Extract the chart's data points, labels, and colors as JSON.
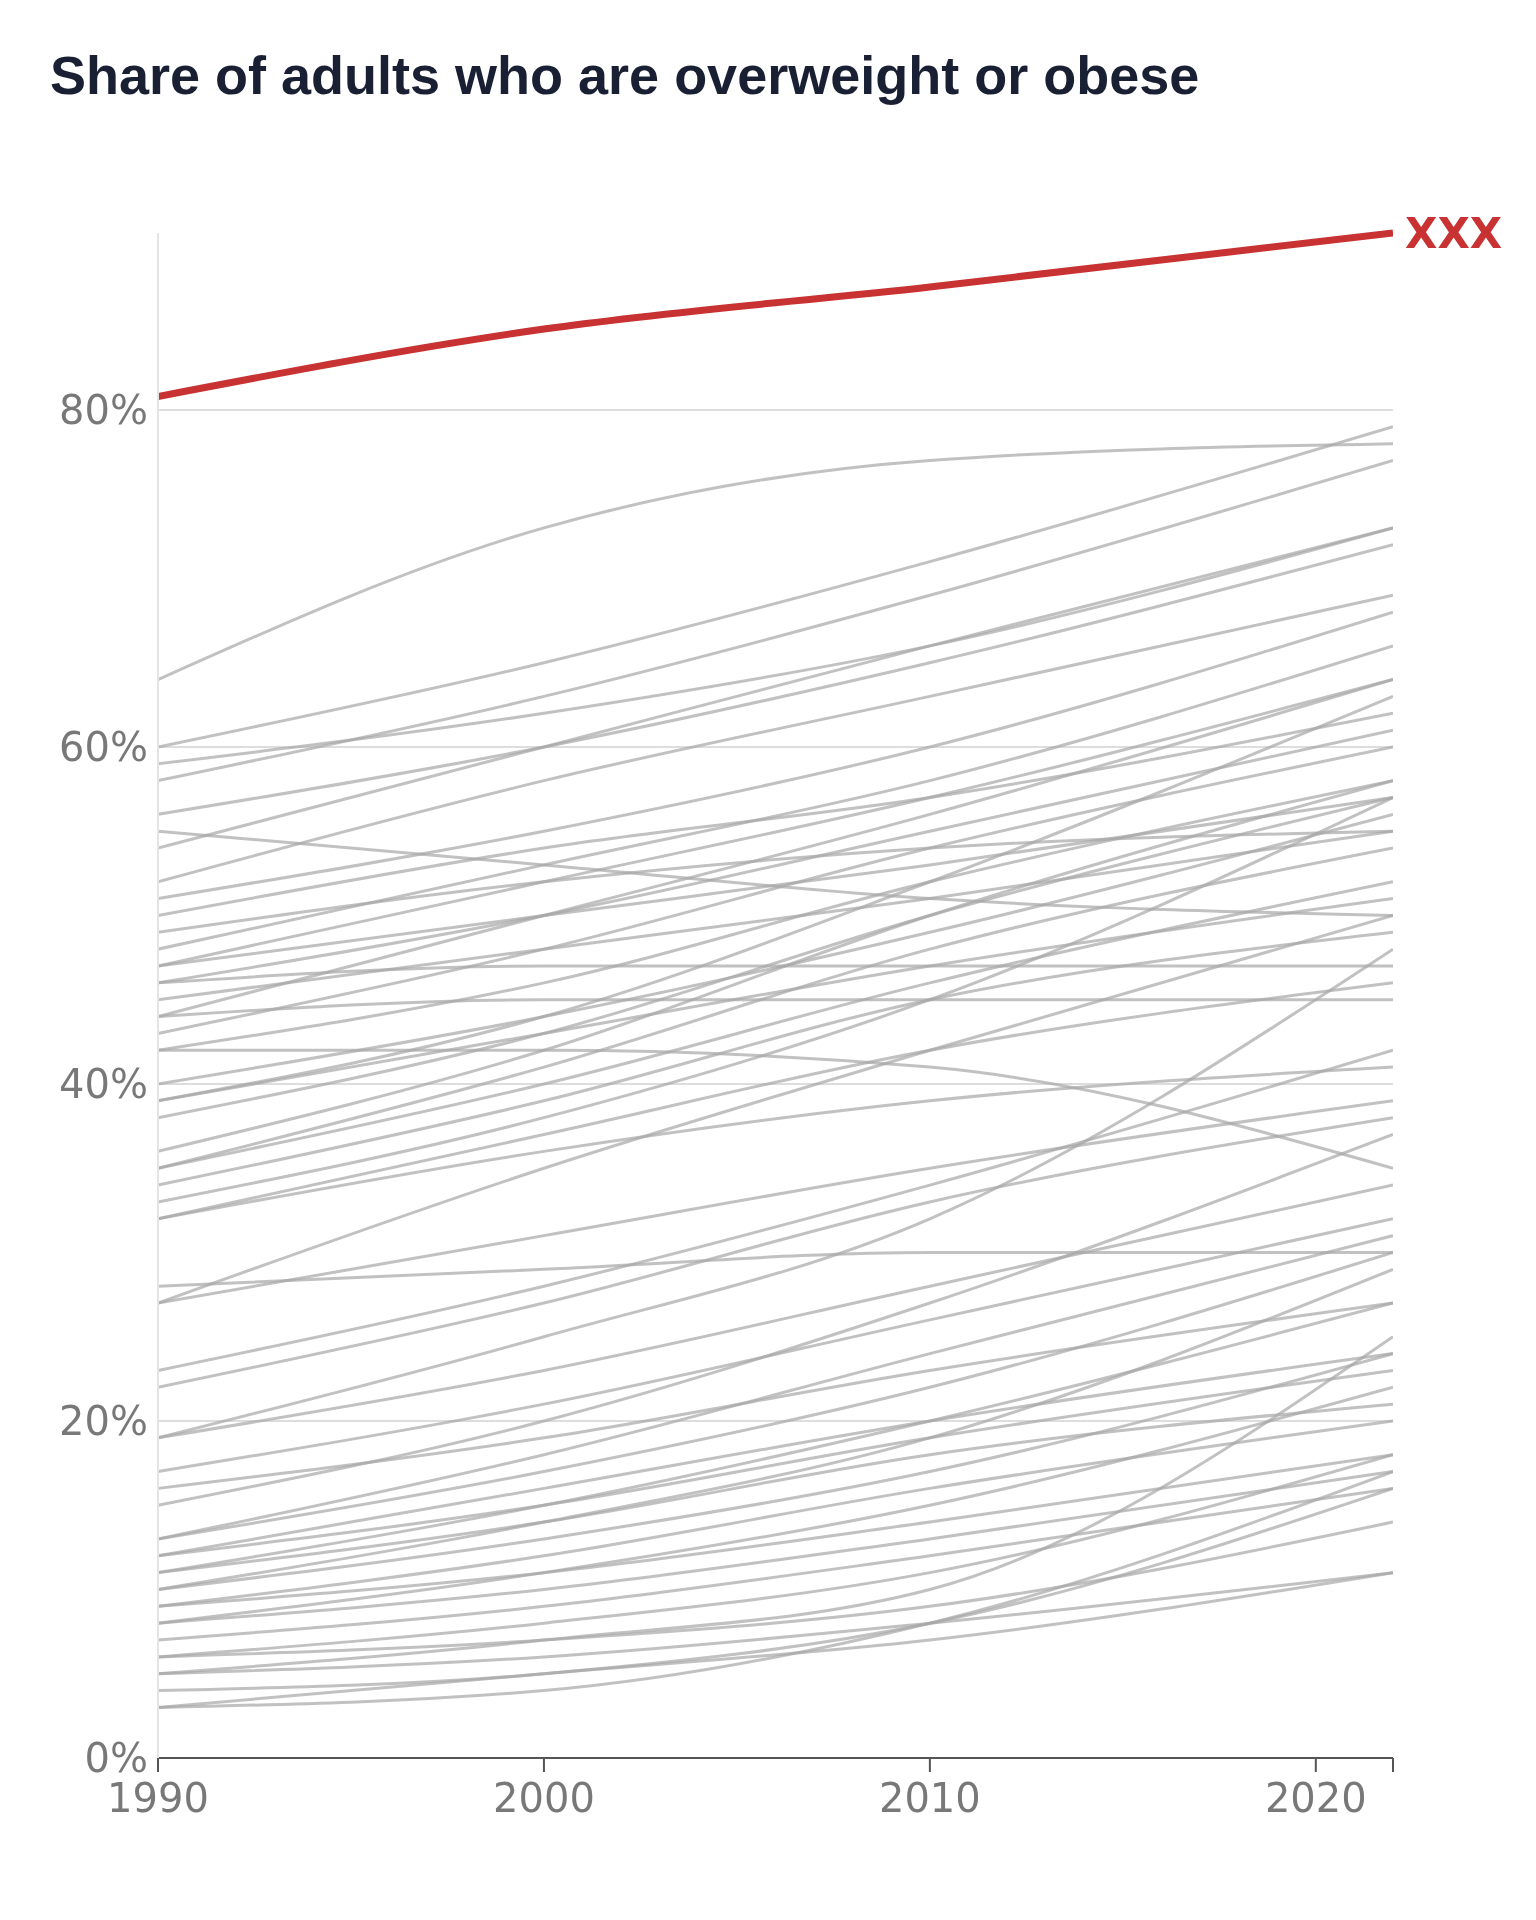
{
  "chart_data": {
    "type": "line",
    "title": "Share of adults who are overweight or obese",
    "x": [
      1990,
      2000,
      2010,
      2022
    ],
    "xlim": [
      1990,
      2022
    ],
    "ylim": [
      0,
      90.5
    ],
    "xticks": [
      1990,
      2000,
      2010,
      2020,
      {
        "value": 2022,
        "label": null
      }
    ],
    "yticks": [
      {
        "value": 0,
        "label": "0%"
      },
      {
        "value": 20,
        "label": "20%"
      },
      {
        "value": 40,
        "label": "40%"
      },
      {
        "value": 60,
        "label": "60%"
      },
      {
        "value": 80,
        "label": "80%"
      }
    ],
    "grid": "y",
    "marker": "none",
    "line_style": "solid",
    "series": [
      {
        "color": "#a6a6a6",
        "values": [
          64,
          73,
          77,
          78
        ]
      },
      {
        "color": "#a6a6a6",
        "values": [
          60,
          65,
          71,
          79
        ]
      },
      {
        "color": "#a6a6a6",
        "values": [
          59,
          62,
          66,
          73
        ]
      },
      {
        "color": "#a6a6a6",
        "values": [
          58,
          63,
          69,
          77
        ]
      },
      {
        "color": "#a6a6a6",
        "values": [
          56,
          60,
          65,
          72
        ]
      },
      {
        "color": "#a6a6a6",
        "values": [
          55,
          53,
          51,
          50
        ]
      },
      {
        "color": "#a6a6a6",
        "values": [
          54,
          60,
          66,
          73
        ]
      },
      {
        "color": "#a6a6a6",
        "values": [
          52,
          58,
          63,
          69
        ]
      },
      {
        "color": "#a6a6a6",
        "values": [
          51,
          55,
          60,
          68
        ]
      },
      {
        "color": "#a6a6a6",
        "values": [
          50,
          54,
          57,
          62
        ]
      },
      {
        "color": "#a6a6a6",
        "values": [
          49,
          52,
          54,
          55
        ]
      },
      {
        "color": "#a6a6a6",
        "values": [
          48,
          53,
          58,
          66
        ]
      },
      {
        "color": "#a6a6a6",
        "values": [
          47,
          50,
          53,
          57
        ]
      },
      {
        "color": "#a6a6a6",
        "values": [
          46,
          50,
          55,
          61
        ]
      },
      {
        "color": "#a6a6a6",
        "values": [
          46,
          47,
          47,
          47
        ]
      },
      {
        "color": "#a6a6a6",
        "values": [
          45,
          48,
          51,
          55
        ]
      },
      {
        "color": "#a6a6a6",
        "values": [
          44,
          45,
          45,
          45
        ]
      },
      {
        "color": "#a6a6a6",
        "values": [
          43,
          48,
          54,
          60
        ]
      },
      {
        "color": "#a6a6a6",
        "values": [
          42,
          46,
          52,
          58
        ]
      },
      {
        "color": "#a6a6a6",
        "values": [
          42,
          42,
          41,
          35
        ]
      },
      {
        "color": "#a6a6a6",
        "values": [
          40,
          44,
          49,
          56
        ]
      },
      {
        "color": "#a6a6a6",
        "values": [
          39,
          43,
          47,
          51
        ]
      },
      {
        "color": "#a6a6a6",
        "values": [
          39,
          44,
          52,
          63
        ]
      },
      {
        "color": "#a6a6a6",
        "values": [
          38,
          43,
          50,
          57
        ]
      },
      {
        "color": "#a6a6a6",
        "values": [
          35,
          41,
          48,
          54
        ]
      },
      {
        "color": "#a6a6a6",
        "values": [
          35,
          40,
          46,
          52
        ]
      },
      {
        "color": "#a6a6a6",
        "values": [
          34,
          39,
          45,
          49
        ]
      },
      {
        "color": "#a6a6a6",
        "values": [
          33,
          38,
          45,
          57
        ]
      },
      {
        "color": "#a6a6a6",
        "values": [
          32,
          37,
          42,
          46
        ]
      },
      {
        "color": "#a6a6a6",
        "values": [
          32,
          36,
          39,
          41
        ]
      },
      {
        "color": "#a6a6a6",
        "values": [
          28,
          29,
          30,
          30
        ]
      },
      {
        "color": "#a6a6a6",
        "values": [
          27,
          31,
          35,
          39
        ]
      },
      {
        "color": "#a6a6a6",
        "values": [
          23,
          28,
          34,
          42
        ]
      },
      {
        "color": "#a6a6a6",
        "values": [
          22,
          27,
          33,
          38
        ]
      },
      {
        "color": "#a6a6a6",
        "values": [
          19,
          23,
          28,
          34
        ]
      },
      {
        "color": "#a6a6a6",
        "values": [
          19,
          25,
          32,
          48
        ]
      },
      {
        "color": "#a6a6a6",
        "values": [
          17,
          21,
          26,
          32
        ]
      },
      {
        "color": "#a6a6a6",
        "values": [
          16,
          19,
          23,
          27
        ]
      },
      {
        "color": "#a6a6a6",
        "values": [
          15,
          20,
          27,
          37
        ]
      },
      {
        "color": "#a6a6a6",
        "values": [
          13,
          17,
          22,
          30
        ]
      },
      {
        "color": "#a6a6a6",
        "values": [
          13,
          18,
          24,
          31
        ]
      },
      {
        "color": "#a6a6a6",
        "values": [
          12,
          16,
          20,
          24
        ]
      },
      {
        "color": "#a6a6a6",
        "values": [
          12,
          15,
          19,
          23
        ]
      },
      {
        "color": "#a6a6a6",
        "values": [
          11,
          15,
          20,
          27
        ]
      },
      {
        "color": "#a6a6a6",
        "values": [
          11,
          14,
          18,
          21
        ]
      },
      {
        "color": "#a6a6a6",
        "values": [
          10,
          13,
          17,
          24
        ]
      },
      {
        "color": "#a6a6a6",
        "values": [
          10,
          14,
          19,
          29
        ]
      },
      {
        "color": "#a6a6a6",
        "values": [
          9,
          12,
          16,
          20
        ]
      },
      {
        "color": "#a6a6a6",
        "values": [
          9,
          11,
          14,
          18
        ]
      },
      {
        "color": "#a6a6a6",
        "values": [
          8,
          11,
          15,
          22
        ]
      },
      {
        "color": "#a6a6a6",
        "values": [
          8,
          10,
          13,
          17
        ]
      },
      {
        "color": "#a6a6a6",
        "values": [
          7,
          9,
          12,
          16
        ]
      },
      {
        "color": "#a6a6a6",
        "values": [
          6,
          8,
          11,
          18
        ]
      },
      {
        "color": "#a6a6a6",
        "values": [
          6,
          7,
          9,
          14
        ]
      },
      {
        "color": "#a6a6a6",
        "values": [
          5,
          7,
          10,
          25
        ]
      },
      {
        "color": "#a6a6a6",
        "values": [
          5,
          6,
          8,
          11
        ]
      },
      {
        "color": "#a6a6a6",
        "values": [
          4,
          5,
          8,
          16
        ]
      },
      {
        "color": "#a6a6a6",
        "values": [
          3,
          4,
          8,
          17
        ]
      },
      {
        "color": "#a6a6a6",
        "values": [
          3,
          5,
          7,
          11
        ]
      },
      {
        "color": "#a6a6a6",
        "values": [
          44,
          50,
          56,
          64
        ]
      },
      {
        "color": "#a6a6a6",
        "values": [
          47,
          52,
          57,
          64
        ]
      },
      {
        "color": "#a6a6a6",
        "values": [
          36,
          42,
          50,
          58
        ]
      },
      {
        "color": "#a6a6a6",
        "values": [
          27,
          35,
          42,
          50
        ]
      },
      {
        "name": "XXX",
        "color": "#c83232",
        "values": [
          80.8,
          84.8,
          87.3,
          90.5
        ]
      }
    ]
  }
}
